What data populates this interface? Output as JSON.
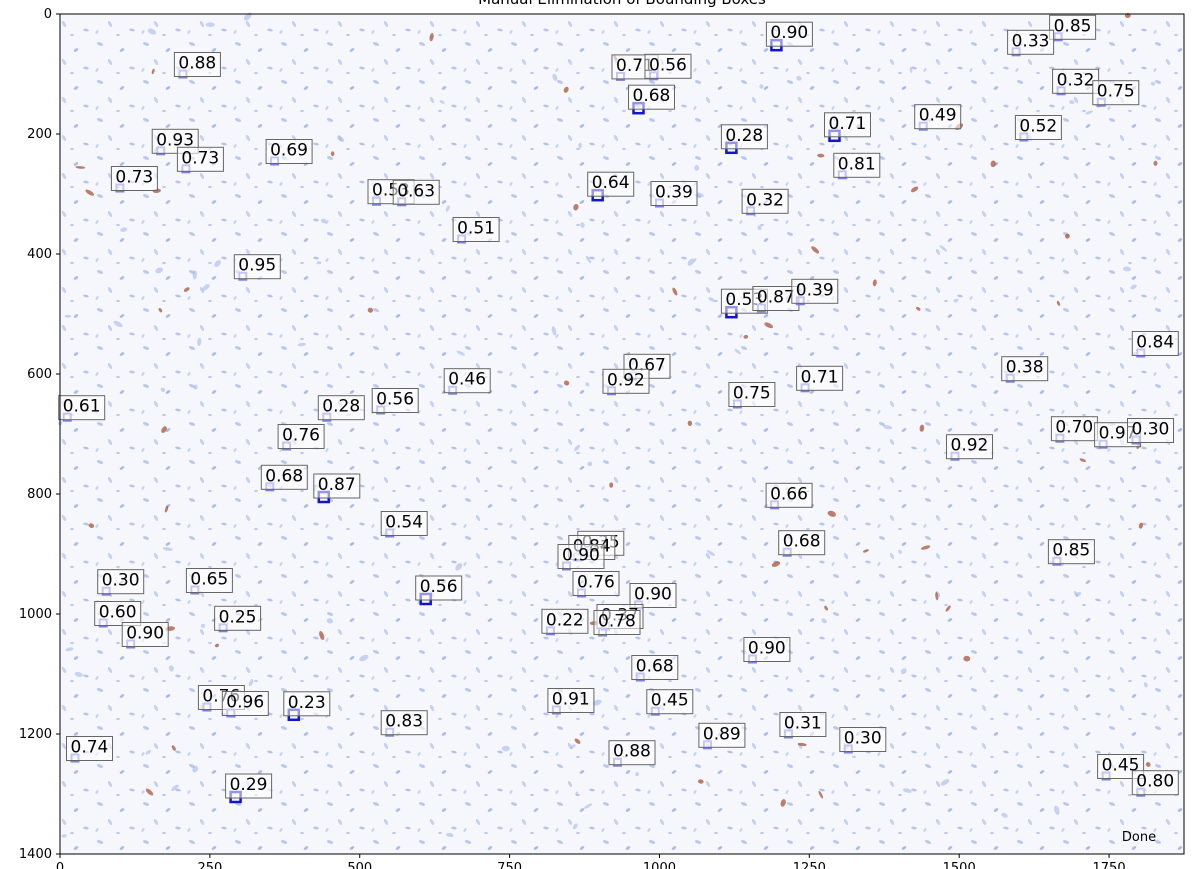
{
  "chart_data": {
    "type": "scatter",
    "title": "Manual Elimination of Bounding Boxes",
    "status_text": "Done",
    "xlim": [
      0,
      1875
    ],
    "ylim": [
      1400,
      0
    ],
    "grid": false,
    "x_ticks": [
      0,
      250,
      500,
      750,
      1000,
      1250,
      1500,
      1750
    ],
    "x_tick_labels": [
      "0",
      "250",
      "500",
      "750",
      "1000",
      "1250",
      "1500",
      "1750"
    ],
    "y_ticks": [
      0,
      200,
      400,
      600,
      800,
      1000,
      1200,
      1400
    ],
    "y_tick_labels": [
      "0",
      "200",
      "400",
      "600",
      "800",
      "1000",
      "1200",
      "1400"
    ],
    "colors": {
      "background": "#f4f6fd",
      "tissue_blue": "#9fb4e8",
      "tissue_brown": "#a8553a",
      "box_light": "#7a7ee6",
      "box_dark": "#1414c8",
      "label_border": "#666666"
    },
    "boxes": [
      {
        "x": 205,
        "y": 100,
        "score": "0.88"
      },
      {
        "x": 168,
        "y": 228,
        "score": "0.93"
      },
      {
        "x": 210,
        "y": 258,
        "score": "0.73"
      },
      {
        "x": 100,
        "y": 290,
        "score": "0.73"
      },
      {
        "x": 358,
        "y": 245,
        "score": "0.69"
      },
      {
        "x": 528,
        "y": 312,
        "score": "0.53"
      },
      {
        "x": 570,
        "y": 313,
        "score": "0.63"
      },
      {
        "x": 670,
        "y": 375,
        "score": "0.51"
      },
      {
        "x": 305,
        "y": 437,
        "score": "0.95"
      },
      {
        "x": 935,
        "y": 104,
        "score": "0.71"
      },
      {
        "x": 990,
        "y": 103,
        "score": "0.56"
      },
      {
        "x": 965,
        "y": 157,
        "score": "0.68",
        "dark": true
      },
      {
        "x": 1195,
        "y": 52,
        "score": "0.90",
        "dark": true
      },
      {
        "x": 1665,
        "y": 38,
        "score": "0.85"
      },
      {
        "x": 1595,
        "y": 63,
        "score": "0.33"
      },
      {
        "x": 1670,
        "y": 128,
        "score": "0.32"
      },
      {
        "x": 1737,
        "y": 147,
        "score": "0.75"
      },
      {
        "x": 1440,
        "y": 187,
        "score": "0.49"
      },
      {
        "x": 1292,
        "y": 203,
        "score": "0.71",
        "dark": true
      },
      {
        "x": 1120,
        "y": 223,
        "score": "0.28",
        "dark": true
      },
      {
        "x": 1608,
        "y": 205,
        "score": "0.52"
      },
      {
        "x": 1305,
        "y": 268,
        "score": "0.81"
      },
      {
        "x": 897,
        "y": 302,
        "score": "0.64",
        "dark": true
      },
      {
        "x": 1000,
        "y": 315,
        "score": "0.39"
      },
      {
        "x": 1152,
        "y": 328,
        "score": "0.32"
      },
      {
        "x": 1120,
        "y": 497,
        "score": "0.53",
        "dark": true
      },
      {
        "x": 1170,
        "y": 490,
        "score": "0.87"
      },
      {
        "x": 1235,
        "y": 478,
        "score": "0.39"
      },
      {
        "x": 1803,
        "y": 565,
        "score": "0.84"
      },
      {
        "x": 955,
        "y": 603,
        "score": "0.67"
      },
      {
        "x": 920,
        "y": 628,
        "score": "0.92"
      },
      {
        "x": 1585,
        "y": 607,
        "score": "0.38"
      },
      {
        "x": 1243,
        "y": 623,
        "score": "0.71"
      },
      {
        "x": 1130,
        "y": 650,
        "score": "0.75"
      },
      {
        "x": 655,
        "y": 627,
        "score": "0.46"
      },
      {
        "x": 535,
        "y": 660,
        "score": "0.56"
      },
      {
        "x": 445,
        "y": 672,
        "score": "0.28"
      },
      {
        "x": 12,
        "y": 672,
        "score": "0.61"
      },
      {
        "x": 378,
        "y": 720,
        "score": "0.76"
      },
      {
        "x": 1668,
        "y": 707,
        "score": "0.70"
      },
      {
        "x": 1740,
        "y": 717,
        "score": "0.97"
      },
      {
        "x": 1795,
        "y": 710,
        "score": "0.30"
      },
      {
        "x": 1493,
        "y": 737,
        "score": "0.92"
      },
      {
        "x": 350,
        "y": 788,
        "score": "0.68"
      },
      {
        "x": 440,
        "y": 805,
        "score": "0.87",
        "dark": true
      },
      {
        "x": 1192,
        "y": 818,
        "score": "0.66"
      },
      {
        "x": 550,
        "y": 865,
        "score": "0.54"
      },
      {
        "x": 878,
        "y": 898,
        "score": "0.35"
      },
      {
        "x": 863,
        "y": 905,
        "score": "0.84"
      },
      {
        "x": 845,
        "y": 920,
        "score": "0.90"
      },
      {
        "x": 1213,
        "y": 897,
        "score": "0.68"
      },
      {
        "x": 1663,
        "y": 912,
        "score": "0.85"
      },
      {
        "x": 77,
        "y": 962,
        "score": "0.30"
      },
      {
        "x": 225,
        "y": 960,
        "score": "0.65"
      },
      {
        "x": 870,
        "y": 965,
        "score": "0.76"
      },
      {
        "x": 610,
        "y": 975,
        "score": "0.56",
        "dark": true
      },
      {
        "x": 965,
        "y": 985,
        "score": "0.90"
      },
      {
        "x": 910,
        "y": 1020,
        "score": "0.37"
      },
      {
        "x": 905,
        "y": 1030,
        "score": "0.78"
      },
      {
        "x": 72,
        "y": 1015,
        "score": "0.60"
      },
      {
        "x": 272,
        "y": 1023,
        "score": "0.25"
      },
      {
        "x": 818,
        "y": 1028,
        "score": "0.22"
      },
      {
        "x": 118,
        "y": 1050,
        "score": "0.90"
      },
      {
        "x": 1155,
        "y": 1075,
        "score": "0.90"
      },
      {
        "x": 968,
        "y": 1105,
        "score": "0.68"
      },
      {
        "x": 245,
        "y": 1155,
        "score": "0.76"
      },
      {
        "x": 285,
        "y": 1165,
        "score": "0.96"
      },
      {
        "x": 390,
        "y": 1168,
        "score": "0.23",
        "dark": true
      },
      {
        "x": 828,
        "y": 1160,
        "score": "0.91"
      },
      {
        "x": 993,
        "y": 1162,
        "score": "0.45"
      },
      {
        "x": 550,
        "y": 1197,
        "score": "0.83"
      },
      {
        "x": 1215,
        "y": 1200,
        "score": "0.31"
      },
      {
        "x": 1080,
        "y": 1218,
        "score": "0.89"
      },
      {
        "x": 1315,
        "y": 1225,
        "score": "0.30"
      },
      {
        "x": 25,
        "y": 1240,
        "score": "0.74"
      },
      {
        "x": 930,
        "y": 1247,
        "score": "0.88"
      },
      {
        "x": 1745,
        "y": 1270,
        "score": "0.45"
      },
      {
        "x": 1803,
        "y": 1297,
        "score": "0.80"
      },
      {
        "x": 293,
        "y": 1305,
        "score": "0.29",
        "dark": true
      }
    ]
  }
}
